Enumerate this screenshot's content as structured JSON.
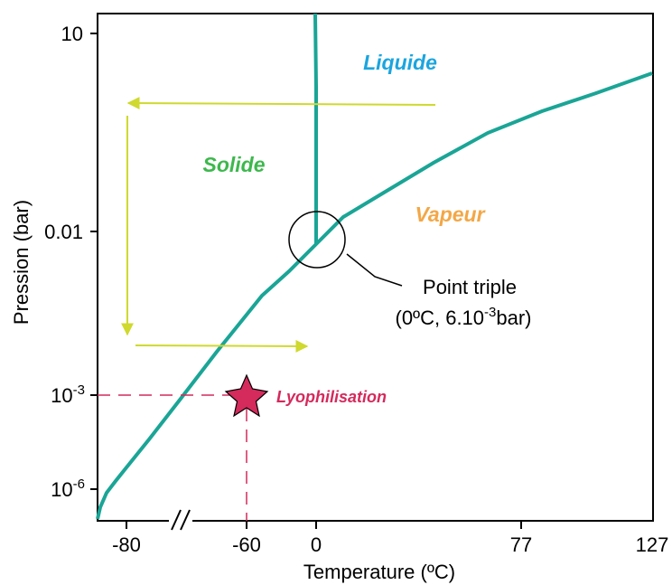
{
  "colors": {
    "curve": "#1aa596",
    "arrow": "#cfd92e",
    "lyophilisation": "#d42a5c",
    "liquide": "#1ba5df",
    "solide": "#3db84d",
    "vapeur": "#f3a746",
    "frame": "#000000"
  },
  "axes": {
    "xlabel": "Temperature (ºC)",
    "ylabel": "Pression (bar)",
    "x_ticks": [
      "-80",
      "-60",
      "0",
      "77",
      "127"
    ],
    "y_ticks": [
      {
        "base": "10",
        "exp": ""
      },
      {
        "base": "0.01",
        "exp": ""
      },
      {
        "base": "10",
        "exp": "-3"
      },
      {
        "base": "10",
        "exp": "-6"
      }
    ],
    "axis_break": "//"
  },
  "regions": {
    "liquide": "Liquide",
    "solide": "Solide",
    "vapeur": "Vapeur"
  },
  "triple_point": {
    "label_line1": "Point triple",
    "label_line2_prefix": "(0ºC, 6.10",
    "label_line2_exp": "-3",
    "label_line2_suffix": "bar)"
  },
  "lyophilisation": {
    "label": "Lyophilisation",
    "temperature": "-60",
    "pressure_exp": "-3",
    "marker": "star-icon"
  },
  "arrows": [
    {
      "direction": "left"
    },
    {
      "direction": "down"
    },
    {
      "direction": "right"
    }
  ]
}
